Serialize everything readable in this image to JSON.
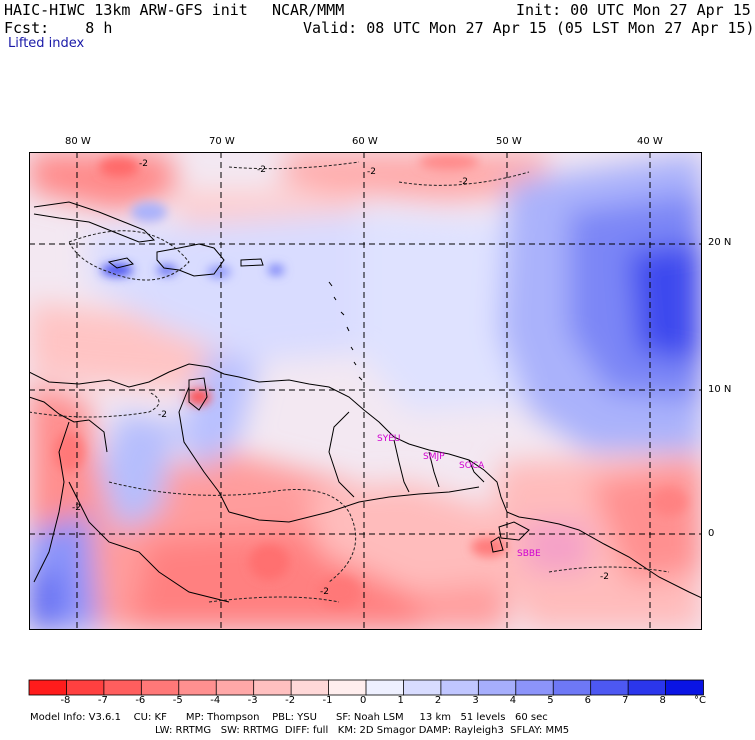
{
  "header": {
    "title": "HAIC-HIWC 13km ARW-GFS init",
    "org": "NCAR/MMM",
    "init": "Init: 00 UTC Mon 27 Apr 15",
    "fcst": "Fcst:    8 h",
    "valid": "Valid: 08 UTC Mon 27 Apr 15 (05 LST Mon 27 Apr 15)",
    "field": "Lifted index"
  },
  "lon_labels": [
    "80 W",
    "70 W",
    "60 W",
    "50 W",
    "40 W"
  ],
  "lat_labels": [
    "20 N",
    "10 N",
    "0"
  ],
  "contour_labels": [
    "-2",
    "-2",
    "-2",
    "-2",
    "-2",
    "-2",
    "-2",
    "-2"
  ],
  "station_labels": [
    "SYEU",
    "SMJP",
    "SOCA",
    "SBBE"
  ],
  "colorbar": {
    "ticks": [
      "-8",
      "-7",
      "-6",
      "-5",
      "-4",
      "-3",
      "-2",
      "-1",
      "0",
      "1",
      "2",
      "3",
      "4",
      "5",
      "6",
      "7",
      "8"
    ],
    "unit": "°C",
    "colors": [
      "#ff1c1c",
      "#ff4040",
      "#ff5e5e",
      "#ff7878",
      "#ff9090",
      "#ffa8a8",
      "#ffc0c0",
      "#ffd8d8",
      "#ffeeee",
      "#eef0ff",
      "#d8dcff",
      "#c0c6ff",
      "#a6aefc",
      "#8c94fa",
      "#6e78f6",
      "#4d58f2",
      "#2b36ec",
      "#0a14e4"
    ]
  },
  "footer": {
    "line1": "Model Info: V3.6.1    CU: KF      MP: Thompson    PBL: YSU      SF: Noah LSM     13 km   51 levels   60 sec",
    "line2": "LW: RRTMG   SW: RRTMG  DIFF: full   KM: 2D Smagor DAMP: Rayleigh3  SFLAY: MM5"
  }
}
